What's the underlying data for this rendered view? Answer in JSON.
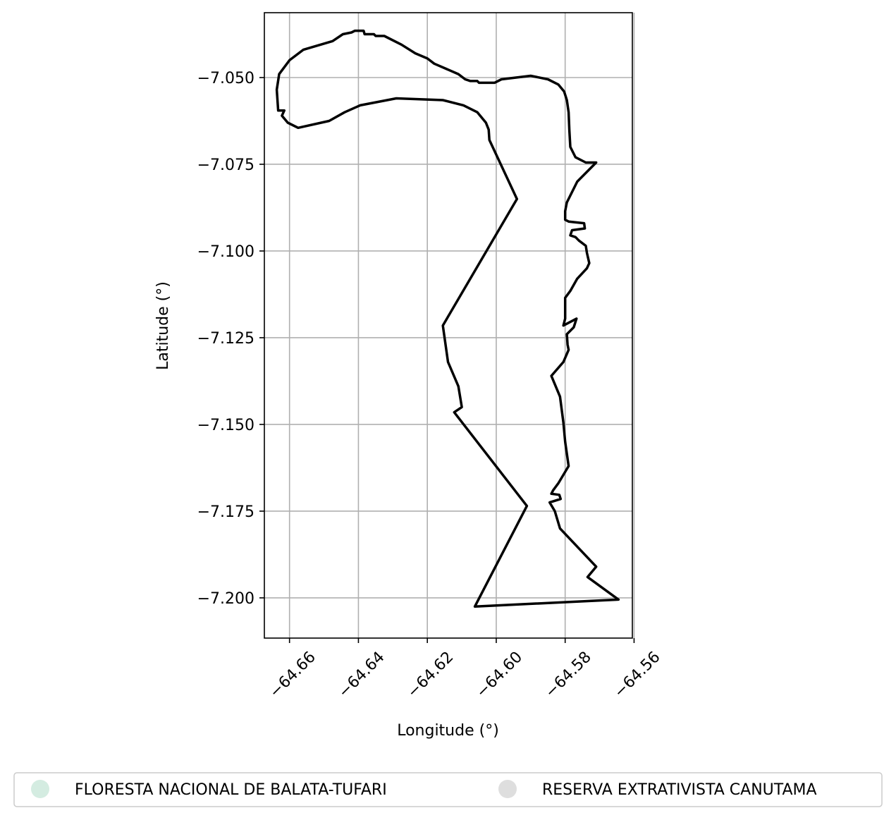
{
  "chart_data": {
    "type": "map",
    "xlabel": "Longitude (°)",
    "ylabel": "Latitude (°)",
    "xlim": [
      -64.6673,
      -64.5605
    ],
    "ylim": [
      -7.2116,
      -7.0313
    ],
    "grid": true,
    "x_ticks": [
      {
        "value": -64.66,
        "label": "−64.66"
      },
      {
        "value": -64.64,
        "label": "−64.64"
      },
      {
        "value": -64.62,
        "label": "−64.62"
      },
      {
        "value": -64.6,
        "label": "−64.60"
      },
      {
        "value": -64.58,
        "label": "−64.58"
      },
      {
        "value": -64.56,
        "label": "−64.56"
      }
    ],
    "y_ticks": [
      {
        "value": -7.05,
        "label": "−7.050"
      },
      {
        "value": -7.075,
        "label": "−7.075"
      },
      {
        "value": -7.1,
        "label": "−7.100"
      },
      {
        "value": -7.125,
        "label": "−7.125"
      },
      {
        "value": -7.15,
        "label": "−7.150"
      },
      {
        "value": -7.175,
        "label": "−7.175"
      },
      {
        "value": -7.2,
        "label": "−7.200"
      }
    ],
    "boundary_color": "#000000",
    "boundary": [
      [
        -64.6062,
        -7.2025
      ],
      [
        -64.5911,
        -7.1735
      ],
      [
        -64.6122,
        -7.1465
      ],
      [
        -64.61,
        -7.145
      ],
      [
        -64.611,
        -7.139
      ],
      [
        -64.614,
        -7.132
      ],
      [
        -64.6155,
        -7.1215
      ],
      [
        -64.594,
        -7.085
      ],
      [
        -64.602,
        -7.068
      ],
      [
        -64.6022,
        -7.065
      ],
      [
        -64.603,
        -7.063
      ],
      [
        -64.6055,
        -7.06
      ],
      [
        -64.6095,
        -7.058
      ],
      [
        -64.6155,
        -7.0565
      ],
      [
        -64.629,
        -7.056
      ],
      [
        -64.6395,
        -7.058
      ],
      [
        -64.644,
        -7.06
      ],
      [
        -64.6485,
        -7.0625
      ],
      [
        -64.6575,
        -7.0645
      ],
      [
        -64.6605,
        -7.063
      ],
      [
        -64.6622,
        -7.061
      ],
      [
        -64.6615,
        -7.0595
      ],
      [
        -64.6633,
        -7.0595
      ],
      [
        -64.6637,
        -7.0535
      ],
      [
        -64.663,
        -7.049
      ],
      [
        -64.66,
        -7.045
      ],
      [
        -64.656,
        -7.042
      ],
      [
        -64.6475,
        -7.0395
      ],
      [
        -64.6445,
        -7.0375
      ],
      [
        -64.642,
        -7.037
      ],
      [
        -64.641,
        -7.0365
      ],
      [
        -64.6385,
        -7.0365
      ],
      [
        -64.6382,
        -7.0375
      ],
      [
        -64.6355,
        -7.0375
      ],
      [
        -64.635,
        -7.038
      ],
      [
        -64.6325,
        -7.038
      ],
      [
        -64.6275,
        -7.0405
      ],
      [
        -64.6235,
        -7.043
      ],
      [
        -64.62,
        -7.0445
      ],
      [
        -64.618,
        -7.046
      ],
      [
        -64.611,
        -7.049
      ],
      [
        -64.609,
        -7.0505
      ],
      [
        -64.6075,
        -7.051
      ],
      [
        -64.6055,
        -7.051
      ],
      [
        -64.605,
        -7.0515
      ],
      [
        -64.6005,
        -7.0515
      ],
      [
        -64.5985,
        -7.0505
      ],
      [
        -64.59,
        -7.0495
      ],
      [
        -64.585,
        -7.0505
      ],
      [
        -64.582,
        -7.052
      ],
      [
        -64.5803,
        -7.054
      ],
      [
        -64.5795,
        -7.0565
      ],
      [
        -64.579,
        -7.06
      ],
      [
        -64.5788,
        -7.065
      ],
      [
        -64.5785,
        -7.07
      ],
      [
        -64.577,
        -7.073
      ],
      [
        -64.574,
        -7.0745
      ],
      [
        -64.571,
        -7.0745
      ],
      [
        -64.5765,
        -7.08
      ],
      [
        -64.5795,
        -7.086
      ],
      [
        -64.58,
        -7.0885
      ],
      [
        -64.58,
        -7.091
      ],
      [
        -64.579,
        -7.0915
      ],
      [
        -64.5745,
        -7.092
      ],
      [
        -64.5743,
        -7.0935
      ],
      [
        -64.578,
        -7.094
      ],
      [
        -64.5785,
        -7.0955
      ],
      [
        -64.577,
        -7.096
      ],
      [
        -64.576,
        -7.097
      ],
      [
        -64.574,
        -7.0985
      ],
      [
        -64.5737,
        -7.1005
      ],
      [
        -64.573,
        -7.1035
      ],
      [
        -64.5737,
        -7.105
      ],
      [
        -64.5765,
        -7.108
      ],
      [
        -64.5785,
        -7.1115
      ],
      [
        -64.58,
        -7.1135
      ],
      [
        -64.58,
        -7.1155
      ],
      [
        -64.58,
        -7.1175
      ],
      [
        -64.58,
        -7.1195
      ],
      [
        -64.5805,
        -7.1215
      ],
      [
        -64.5767,
        -7.1195
      ],
      [
        -64.5775,
        -7.122
      ],
      [
        -64.5795,
        -7.124
      ],
      [
        -64.5793,
        -7.127
      ],
      [
        -64.579,
        -7.1285
      ],
      [
        -64.5805,
        -7.132
      ],
      [
        -64.584,
        -7.136
      ],
      [
        -64.5815,
        -7.142
      ],
      [
        -64.5805,
        -7.1495
      ],
      [
        -64.58,
        -7.155
      ],
      [
        -64.579,
        -7.162
      ],
      [
        -64.582,
        -7.167
      ],
      [
        -64.5835,
        -7.169
      ],
      [
        -64.584,
        -7.17
      ],
      [
        -64.5817,
        -7.1703
      ],
      [
        -64.5813,
        -7.1715
      ],
      [
        -64.5845,
        -7.1725
      ],
      [
        -64.583,
        -7.175
      ],
      [
        -64.5815,
        -7.18
      ],
      [
        -64.571,
        -7.191
      ],
      [
        -64.5735,
        -7.194
      ],
      [
        -64.5645,
        -7.2005
      ],
      [
        -64.6062,
        -7.2025
      ]
    ],
    "legend": {
      "placement": "bottom",
      "entries": [
        {
          "label": "FLORESTA NACIONAL DE BALATA-TUFARI",
          "color": "#d4ece1"
        },
        {
          "label": "RESERVA EXTRATIVISTA CANUTAMA",
          "color": "#dedede"
        }
      ]
    }
  }
}
